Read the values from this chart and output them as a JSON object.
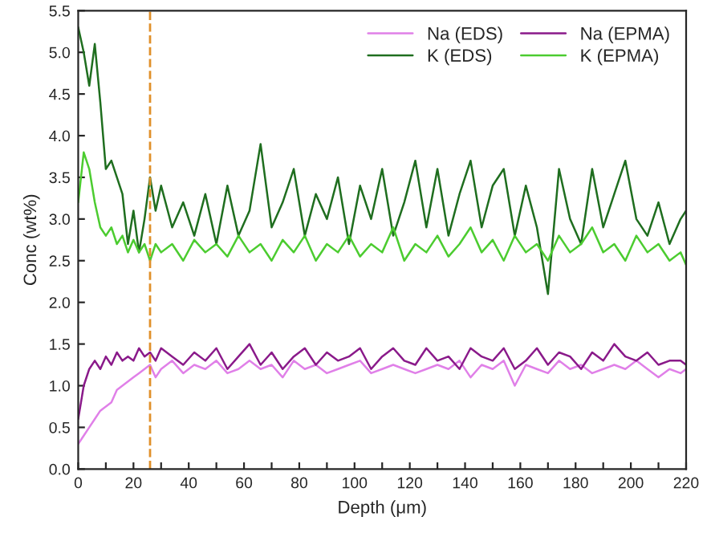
{
  "chart_data": {
    "type": "line",
    "xlabel": "Depth (μm)",
    "ylabel": "Conc (wt%)",
    "x": [
      0,
      2,
      4,
      6,
      8,
      10,
      12,
      14,
      16,
      18,
      20,
      22,
      24,
      26,
      28,
      30,
      34,
      38,
      42,
      46,
      50,
      54,
      58,
      62,
      66,
      70,
      74,
      78,
      82,
      86,
      90,
      94,
      98,
      102,
      106,
      110,
      114,
      118,
      122,
      126,
      130,
      134,
      138,
      142,
      146,
      150,
      154,
      158,
      162,
      166,
      170,
      174,
      178,
      182,
      186,
      190,
      194,
      198,
      202,
      206,
      210,
      214,
      218,
      220
    ],
    "series": [
      {
        "name": "Na (EDS)",
        "color": "#e080e8",
        "values": [
          0.3,
          0.4,
          0.5,
          0.6,
          0.7,
          0.75,
          0.8,
          0.95,
          1.0,
          1.05,
          1.1,
          1.15,
          1.2,
          1.25,
          1.1,
          1.2,
          1.3,
          1.15,
          1.25,
          1.2,
          1.3,
          1.15,
          1.2,
          1.3,
          1.2,
          1.25,
          1.1,
          1.3,
          1.2,
          1.25,
          1.15,
          1.2,
          1.25,
          1.3,
          1.15,
          1.2,
          1.25,
          1.2,
          1.15,
          1.2,
          1.25,
          1.2,
          1.3,
          1.1,
          1.25,
          1.2,
          1.3,
          1.0,
          1.25,
          1.2,
          1.15,
          1.3,
          1.2,
          1.25,
          1.15,
          1.2,
          1.25,
          1.2,
          1.3,
          1.2,
          1.1,
          1.2,
          1.15,
          1.2
        ]
      },
      {
        "name": "Na (EPMA)",
        "color": "#8a1a8a",
        "values": [
          0.6,
          1.0,
          1.2,
          1.3,
          1.2,
          1.35,
          1.25,
          1.4,
          1.3,
          1.35,
          1.3,
          1.45,
          1.35,
          1.4,
          1.3,
          1.45,
          1.35,
          1.25,
          1.4,
          1.3,
          1.45,
          1.2,
          1.35,
          1.5,
          1.25,
          1.4,
          1.2,
          1.35,
          1.45,
          1.25,
          1.4,
          1.3,
          1.35,
          1.45,
          1.2,
          1.35,
          1.45,
          1.3,
          1.25,
          1.45,
          1.3,
          1.35,
          1.2,
          1.45,
          1.35,
          1.3,
          1.45,
          1.2,
          1.3,
          1.45,
          1.25,
          1.4,
          1.35,
          1.2,
          1.4,
          1.3,
          1.5,
          1.35,
          1.3,
          1.4,
          1.25,
          1.3,
          1.3,
          1.25
        ]
      },
      {
        "name": "K (EDS)",
        "color": "#1f6e1f",
        "values": [
          5.3,
          5.0,
          4.6,
          5.1,
          4.4,
          3.6,
          3.7,
          3.5,
          3.3,
          2.7,
          3.1,
          2.6,
          3.0,
          3.5,
          3.1,
          3.4,
          2.9,
          3.2,
          2.8,
          3.3,
          2.7,
          3.4,
          2.8,
          3.1,
          3.9,
          2.9,
          3.2,
          3.6,
          2.8,
          3.3,
          3.0,
          3.5,
          2.7,
          3.4,
          3.0,
          3.6,
          2.8,
          3.2,
          3.7,
          2.9,
          3.6,
          2.8,
          3.3,
          3.7,
          2.9,
          3.4,
          3.6,
          2.8,
          3.4,
          2.9,
          2.1,
          3.6,
          3.0,
          2.7,
          3.6,
          2.9,
          3.3,
          3.7,
          3.0,
          2.8,
          3.2,
          2.7,
          3.0,
          3.1
        ]
      },
      {
        "name": "K (EPMA)",
        "color": "#4ccc30",
        "values": [
          3.2,
          3.8,
          3.6,
          3.2,
          2.9,
          2.8,
          2.9,
          2.7,
          2.8,
          2.6,
          2.75,
          2.6,
          2.7,
          2.5,
          2.7,
          2.6,
          2.7,
          2.5,
          2.75,
          2.6,
          2.7,
          2.55,
          2.8,
          2.6,
          2.7,
          2.5,
          2.75,
          2.6,
          2.8,
          2.5,
          2.7,
          2.6,
          2.8,
          2.55,
          2.7,
          2.6,
          2.9,
          2.5,
          2.7,
          2.6,
          2.8,
          2.55,
          2.7,
          2.9,
          2.6,
          2.75,
          2.5,
          2.8,
          2.6,
          2.7,
          2.5,
          2.8,
          2.6,
          2.7,
          2.9,
          2.6,
          2.7,
          2.5,
          2.8,
          2.6,
          2.7,
          2.5,
          2.6,
          2.45
        ]
      }
    ],
    "xlim": [
      0,
      220
    ],
    "xticks": [
      0,
      {
        "value": 10,
        "label": null
      },
      20,
      {
        "value": 30,
        "label": null
      },
      40,
      {
        "value": 50,
        "label": null
      },
      60,
      {
        "value": 70,
        "label": null
      },
      80,
      {
        "value": 90,
        "label": null
      },
      100,
      {
        "value": 110,
        "label": null
      },
      120,
      {
        "value": 130,
        "label": null
      },
      140,
      {
        "value": 150,
        "label": null
      },
      160,
      {
        "value": 170,
        "label": null
      },
      180,
      {
        "value": 190,
        "label": null
      },
      200,
      {
        "value": 210,
        "label": null
      },
      220
    ],
    "ylim": [
      0,
      5.5
    ],
    "yticks": [
      {
        "value": 0,
        "label": "0.0"
      },
      {
        "value": 0.5,
        "label": "0.5"
      },
      {
        "value": 1,
        "label": "1.0"
      },
      {
        "value": 1.5,
        "label": "1.5"
      },
      {
        "value": 2,
        "label": "2.0"
      },
      {
        "value": 2.5,
        "label": "2.5"
      },
      {
        "value": 3,
        "label": "3.0"
      },
      {
        "value": 3.5,
        "label": "3.5"
      },
      {
        "value": 4,
        "label": "4.0"
      },
      {
        "value": 4.5,
        "label": "4.5"
      },
      {
        "value": 5,
        "label": "5.0"
      },
      {
        "value": 5.5,
        "label": "5.5"
      }
    ],
    "ref_lines": [
      {
        "axis": "x",
        "value": 26,
        "color": "#e0902a",
        "line_style": "dashed"
      }
    ],
    "grid": false,
    "legend": "top right"
  }
}
